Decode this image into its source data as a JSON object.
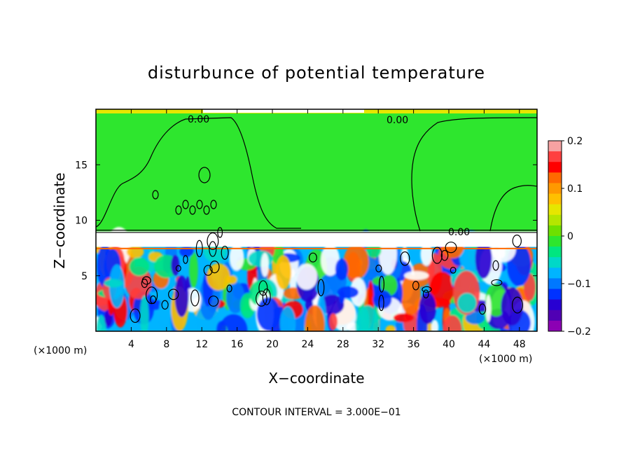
{
  "chart_data": {
    "type": "heatmap",
    "title": "disturbunce of potential temperature",
    "xlabel": "X−coordinate",
    "ylabel": "Z−coordinate",
    "x_unit_left": "(×1000 m)",
    "x_unit_right": "(×1000 m)",
    "xlim": [
      0,
      50
    ],
    "ylim": [
      0,
      20
    ],
    "xticks": [
      "4",
      "8",
      "12",
      "16",
      "20",
      "24",
      "28",
      "32",
      "36",
      "40",
      "44",
      "48"
    ],
    "xtick_values": [
      4,
      8,
      12,
      16,
      20,
      24,
      28,
      32,
      36,
      40,
      44,
      48
    ],
    "yticks": [
      "5",
      "10",
      "15"
    ],
    "ytick_values": [
      5,
      10,
      15
    ],
    "contour_interval_text": "CONTOUR INTERVAL = 3.000E−01",
    "contour_labels": [
      "0.00",
      "0.00",
      "0.00"
    ],
    "colorbar": {
      "min": -0.2,
      "max": 0.2,
      "tick_values": [
        0.2,
        0.1,
        0,
        -0.1,
        -0.2
      ],
      "tick_labels": [
        "0.2",
        "0.1",
        "0",
        "−0.1",
        "−0.2"
      ],
      "colors": [
        "#f6a2a2",
        "#ff4040",
        "#ff0000",
        "#ff6a00",
        "#ff9900",
        "#ffc000",
        "#e6e600",
        "#b4e600",
        "#6ee000",
        "#2ee62e",
        "#00e680",
        "#00d8c8",
        "#00b4ff",
        "#0078ff",
        "#0032ff",
        "#2800d2",
        "#5000b4",
        "#8c00b4"
      ]
    },
    "grid": false,
    "legend": "colorbar at right"
  }
}
